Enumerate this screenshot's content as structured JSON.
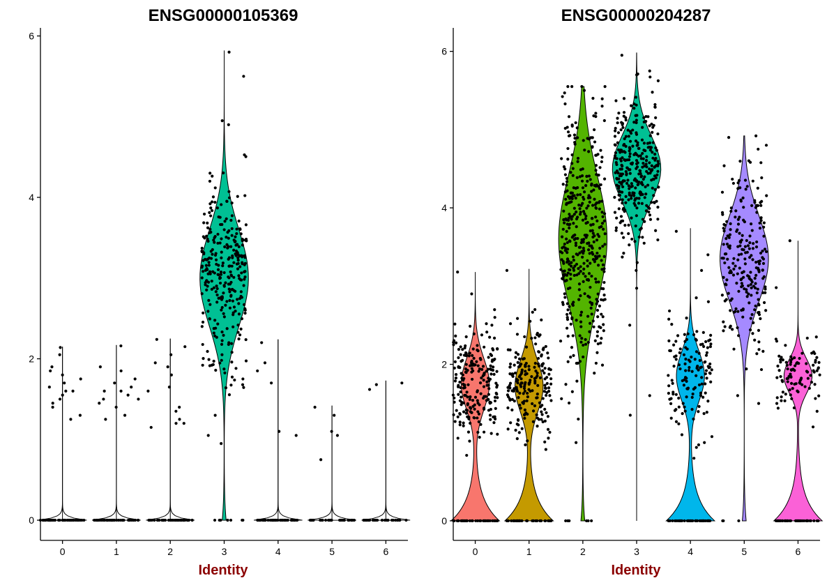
{
  "chart_data": [
    {
      "type": "violin",
      "title": "ENSG00000105369",
      "xlabel": "Identity",
      "ylabel": "",
      "ylim": [
        -0.25,
        6.1
      ],
      "yticks": [
        0,
        2,
        4,
        6
      ],
      "categories": [
        "0",
        "1",
        "2",
        "3",
        "4",
        "5",
        "6"
      ],
      "colors": [
        "#F8766D",
        "#C49A00",
        "#53B400",
        "#00C094",
        "#00B6EB",
        "#A58AFF",
        "#FB61D7"
      ],
      "groups": [
        {
          "category": "0",
          "max": 2.15,
          "shape": "zero-spike",
          "n_zero": 45,
          "points": [
            1.9,
            2.14,
            1.7,
            2.05,
            1.8,
            1.6,
            1.5,
            1.3,
            1.25,
            1.55,
            1.45,
            1.65,
            1.85,
            1.75,
            1.6,
            1.4
          ]
        },
        {
          "category": "1",
          "max": 2.17,
          "shape": "zero-spike",
          "n_zero": 45,
          "points": [
            1.6,
            1.9,
            1.5,
            1.7,
            2.16,
            1.3,
            1.25,
            1.55,
            1.85,
            1.65,
            1.4,
            1.75,
            1.45,
            1.5,
            1.6
          ]
        },
        {
          "category": "2",
          "max": 2.25,
          "shape": "zero-spike",
          "n_zero": 45,
          "points": [
            2.24,
            2.15,
            1.9,
            1.65,
            1.4,
            1.2,
            1.15,
            1.35,
            1.8,
            1.95,
            1.25,
            1.2,
            1.6,
            2.05
          ]
        },
        {
          "category": "3",
          "max": 5.82,
          "shape": "bulk",
          "n_zero": 8,
          "mean": 3.0,
          "sd": 0.6,
          "n_points": 300,
          "extra_points": [
            5.8,
            5.5,
            4.95,
            4.9,
            4.3,
            4.2,
            1.3,
            1.05,
            0.95
          ]
        },
        {
          "category": "4",
          "max": 2.24,
          "shape": "zero-spike",
          "n_zero": 45,
          "points": [
            2.2,
            1.95,
            1.7,
            1.1,
            1.05,
            1.85
          ]
        },
        {
          "category": "5",
          "max": 1.42,
          "shape": "zero-spike",
          "n_zero": 30,
          "points": [
            1.4,
            1.3,
            1.1,
            1.05,
            0.75
          ]
        },
        {
          "category": "6",
          "max": 1.73,
          "shape": "zero-spike",
          "n_zero": 30,
          "points": [
            1.7,
            1.68,
            1.62
          ]
        }
      ]
    },
    {
      "type": "violin",
      "title": "ENSG00000204287",
      "xlabel": "Identity",
      "ylabel": "",
      "ylim": [
        -0.25,
        6.3
      ],
      "yticks": [
        0,
        2,
        4,
        6
      ],
      "categories": [
        "0",
        "1",
        "2",
        "3",
        "4",
        "5",
        "6"
      ],
      "colors": [
        "#F8766D",
        "#C49A00",
        "#53B400",
        "#00C094",
        "#00B6EB",
        "#A58AFF",
        "#FB61D7"
      ],
      "groups": [
        {
          "category": "0",
          "max": 3.18,
          "shape": "bimodal",
          "n_zero": 45,
          "mean": 1.75,
          "sd": 0.33,
          "n_points": 220,
          "extra_points": [
            3.18,
            2.9,
            2.6,
            2.5
          ]
        },
        {
          "category": "1",
          "max": 3.22,
          "shape": "bimodal",
          "n_zero": 45,
          "mean": 1.72,
          "sd": 0.33,
          "n_points": 200,
          "extra_points": [
            3.2,
            2.7,
            2.55
          ]
        },
        {
          "category": "2",
          "max": 5.55,
          "shape": "bulk",
          "n_zero": 6,
          "mean": 3.6,
          "sd": 0.8,
          "n_points": 420,
          "extra_points": [
            5.5,
            5.4,
            5.3,
            1.3,
            1.0
          ]
        },
        {
          "category": "3",
          "max": 5.98,
          "shape": "bulk",
          "n_zero": 0,
          "mean": 4.5,
          "sd": 0.42,
          "n_points": 320,
          "extra_points": [
            5.95,
            5.75,
            5.7,
            3.3,
            3.2,
            2.5,
            1.6,
            1.35
          ]
        },
        {
          "category": "4",
          "max": 3.74,
          "shape": "bimodal",
          "n_zero": 45,
          "mean": 1.85,
          "sd": 0.32,
          "n_points": 130,
          "extra_points": [
            3.7,
            3.4,
            3.2,
            2.85,
            2.8,
            1.1,
            1.0,
            0.8
          ]
        },
        {
          "category": "5",
          "max": 4.92,
          "shape": "bulk",
          "n_zero": 3,
          "mean": 3.35,
          "sd": 0.55,
          "n_points": 230,
          "extra_points": [
            4.9,
            4.8,
            4.75,
            1.6,
            1.5
          ]
        },
        {
          "category": "6",
          "max": 3.58,
          "shape": "bimodal",
          "n_zero": 45,
          "mean": 1.85,
          "sd": 0.22,
          "n_points": 90,
          "extra_points": [
            3.58,
            2.98,
            2.35,
            1.4,
            1.2
          ]
        }
      ]
    }
  ]
}
